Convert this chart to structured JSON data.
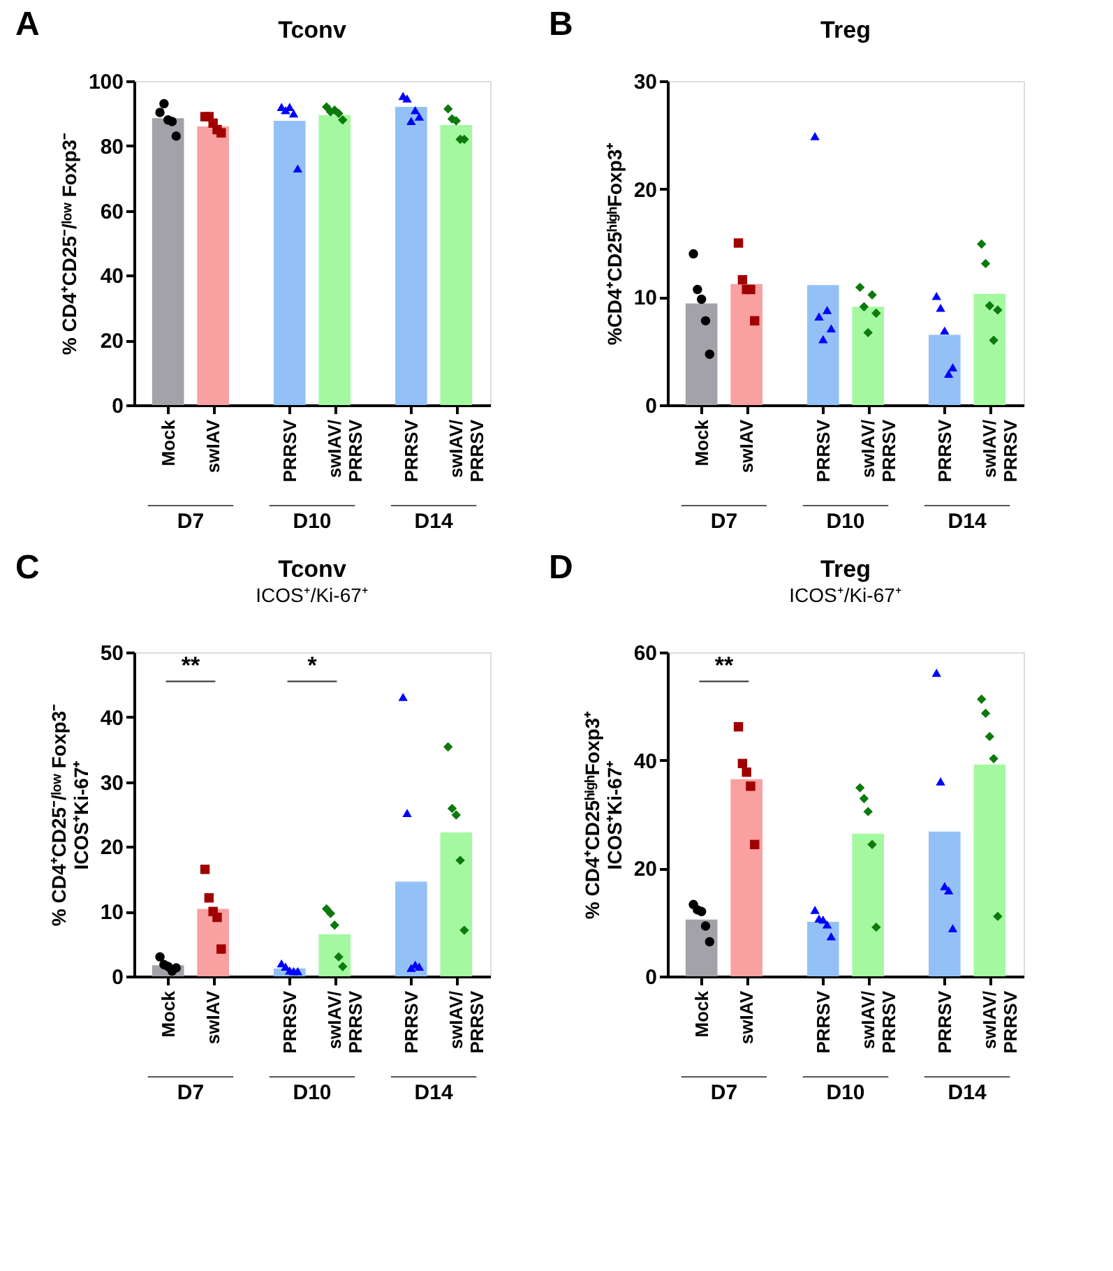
{
  "chart_data": [
    {
      "type": "bar",
      "title": "Tconv",
      "ylabel": "% CD4⁺CD25⁻/ˡᵒʷ Foxp3⁻",
      "categories": [
        "Mock",
        "swIAV",
        "PRRSV",
        "swIAV/PRRSV",
        "PRRSV",
        "swIAV/PRRSV"
      ],
      "ylim": [
        0,
        100
      ],
      "yticks": [
        0,
        20,
        40,
        60,
        80,
        100
      ],
      "annotations": [
        "A",
        "D7",
        "D10",
        "D14"
      ],
      "series": [
        {
          "values": [
            88.5,
            86,
            87.7,
            89.5,
            92,
            86.4
          ],
          "colors": [
            "#a3a2a8",
            "#f9a0a0",
            "#93c1f7",
            "#a4f9a0",
            "#93c1f7",
            "#a4f9a0"
          ]
        },
        {
          "type": "scatter",
          "values": [
            90.3,
            null,
            null,
            null,
            null,
            null
          ],
          "color": "#000000",
          "marker": "circle"
        },
        {
          "type": "scatter",
          "values": [
            93,
            null,
            null,
            null,
            null,
            null
          ],
          "color": "#000000",
          "marker": "circle"
        },
        {
          "type": "scatter",
          "values": [
            88,
            null,
            null,
            null,
            null,
            null
          ],
          "color": "#000000",
          "marker": "circle"
        },
        {
          "type": "scatter",
          "values": [
            87.5,
            null,
            null,
            null,
            null,
            null
          ],
          "color": "#000000",
          "marker": "circle"
        },
        {
          "type": "scatter",
          "values": [
            83,
            null,
            null,
            null,
            null,
            null
          ],
          "color": "#000000",
          "marker": "circle"
        },
        {
          "type": "scatter",
          "values": [
            null,
            89,
            null,
            null,
            null,
            null
          ],
          "color": "#a00000",
          "marker": "square"
        },
        {
          "type": "scatter",
          "values": [
            null,
            89,
            null,
            null,
            null,
            null
          ],
          "color": "#a00000",
          "marker": "square"
        },
        {
          "type": "scatter",
          "values": [
            null,
            87,
            null,
            null,
            null,
            null
          ],
          "color": "#a00000",
          "marker": "square"
        },
        {
          "type": "scatter",
          "values": [
            null,
            85,
            null,
            null,
            null,
            null
          ],
          "color": "#a00000",
          "marker": "square"
        },
        {
          "type": "scatter",
          "values": [
            null,
            84,
            null,
            null,
            null,
            null
          ],
          "color": "#a00000",
          "marker": "square"
        },
        {
          "type": "scatter",
          "values": [
            null,
            null,
            92,
            null,
            95.4,
            null
          ],
          "color": "#0000ff",
          "marker": "triangle"
        },
        {
          "type": "scatter",
          "values": [
            null,
            null,
            91,
            null,
            94.6,
            null
          ],
          "color": "#0000ff",
          "marker": "triangle"
        },
        {
          "type": "scatter",
          "values": [
            null,
            null,
            92,
            null,
            87.7,
            null
          ],
          "color": "#0000ff",
          "marker": "triangle"
        },
        {
          "type": "scatter",
          "values": [
            null,
            null,
            90,
            null,
            91,
            null
          ],
          "color": "#0000ff",
          "marker": "triangle"
        },
        {
          "type": "scatter",
          "values": [
            null,
            null,
            73,
            null,
            89,
            null
          ],
          "color": "#0000ff",
          "marker": "triangle"
        },
        {
          "type": "scatter",
          "values": [
            null,
            null,
            null,
            92,
            null,
            91.4
          ],
          "color": "#0b7a0b",
          "marker": "diamond"
        },
        {
          "type": "scatter",
          "values": [
            null,
            null,
            null,
            90.5,
            null,
            88.3
          ],
          "color": "#0b7a0b",
          "marker": "diamond"
        },
        {
          "type": "scatter",
          "values": [
            null,
            null,
            null,
            91,
            null,
            87.7
          ],
          "color": "#0b7a0b",
          "marker": "diamond"
        },
        {
          "type": "scatter",
          "values": [
            null,
            null,
            null,
            90,
            null,
            82
          ],
          "color": "#0b7a0b",
          "marker": "diamond"
        },
        {
          "type": "scatter",
          "values": [
            null,
            null,
            null,
            88,
            null,
            82
          ],
          "color": "#0b7a0b",
          "marker": "diamond"
        }
      ]
    },
    {
      "type": "bar",
      "title": "Treg",
      "ylabel": "%CD4⁺CD25ʰⁱᵍʰFoxp3⁺",
      "categories": [
        "Mock",
        "swIAV",
        "PRRSV",
        "swIAV/PRRSV",
        "PRRSV",
        "swIAV/PRRSV"
      ],
      "ylim": [
        0,
        30
      ],
      "yticks": [
        0,
        10,
        20,
        30
      ],
      "annotations": [
        "B",
        "D7",
        "D10",
        "D14"
      ],
      "series": [
        {
          "values": [
            9.4,
            11.2,
            11.1,
            9.1,
            6.5,
            10.3
          ],
          "colors": [
            "#a3a2a8",
            "#f9a0a0",
            "#93c1f7",
            "#a4f9a0",
            "#93c1f7",
            "#a4f9a0"
          ]
        },
        {
          "type": "scatter",
          "values": [
            14,
            null,
            null,
            null,
            null,
            null
          ],
          "color": "#000000",
          "marker": "circle"
        },
        {
          "type": "scatter",
          "values": [
            10.7,
            null,
            null,
            null,
            null,
            null
          ],
          "color": "#000000",
          "marker": "circle"
        },
        {
          "type": "scatter",
          "values": [
            9.8,
            null,
            null,
            null,
            null,
            null
          ],
          "color": "#000000",
          "marker": "circle"
        },
        {
          "type": "scatter",
          "values": [
            7.8,
            null,
            null,
            null,
            null,
            null
          ],
          "color": "#000000",
          "marker": "circle"
        },
        {
          "type": "scatter",
          "values": [
            4.7,
            null,
            null,
            null,
            null,
            null
          ],
          "color": "#000000",
          "marker": "circle"
        },
        {
          "type": "scatter",
          "values": [
            null,
            15,
            null,
            null,
            null,
            null
          ],
          "color": "#a00000",
          "marker": "square"
        },
        {
          "type": "scatter",
          "values": [
            null,
            11.6,
            null,
            null,
            null,
            null
          ],
          "color": "#a00000",
          "marker": "square"
        },
        {
          "type": "scatter",
          "values": [
            null,
            10.7,
            null,
            null,
            null,
            null
          ],
          "color": "#a00000",
          "marker": "square"
        },
        {
          "type": "scatter",
          "values": [
            null,
            10.7,
            null,
            null,
            null,
            null
          ],
          "color": "#a00000",
          "marker": "square"
        },
        {
          "type": "scatter",
          "values": [
            null,
            7.8,
            null,
            null,
            null,
            null
          ],
          "color": "#a00000",
          "marker": "square"
        },
        {
          "type": "scatter",
          "values": [
            null,
            null,
            24.9,
            null,
            10.1,
            null
          ],
          "color": "#0000ff",
          "marker": "triangle"
        },
        {
          "type": "scatter",
          "values": [
            null,
            null,
            8.2,
            null,
            9,
            null
          ],
          "color": "#0000ff",
          "marker": "triangle"
        },
        {
          "type": "scatter",
          "values": [
            null,
            null,
            6.1,
            null,
            6.9,
            null
          ],
          "color": "#0000ff",
          "marker": "triangle"
        },
        {
          "type": "scatter",
          "values": [
            null,
            null,
            8.8,
            null,
            2.9,
            null
          ],
          "color": "#0000ff",
          "marker": "triangle"
        },
        {
          "type": "scatter",
          "values": [
            null,
            null,
            7.1,
            null,
            3.5,
            null
          ],
          "color": "#0000ff",
          "marker": "triangle"
        },
        {
          "type": "scatter",
          "values": [
            null,
            null,
            null,
            10.9,
            null,
            14.9
          ],
          "color": "#0b7a0b",
          "marker": "diamond"
        },
        {
          "type": "scatter",
          "values": [
            null,
            null,
            null,
            9.1,
            null,
            13.1
          ],
          "color": "#0b7a0b",
          "marker": "diamond"
        },
        {
          "type": "scatter",
          "values": [
            null,
            null,
            null,
            6.7,
            null,
            9.2
          ],
          "color": "#0b7a0b",
          "marker": "diamond"
        },
        {
          "type": "scatter",
          "values": [
            null,
            null,
            null,
            10.2,
            null,
            6
          ],
          "color": "#0b7a0b",
          "marker": "diamond"
        },
        {
          "type": "scatter",
          "values": [
            null,
            null,
            null,
            8.5,
            null,
            8.8
          ],
          "color": "#0b7a0b",
          "marker": "diamond"
        }
      ]
    },
    {
      "type": "bar",
      "title": "Tconv",
      "subtitle": "ICOS⁺/Ki-67⁺",
      "ylabel": "% CD4⁺CD25⁻/ˡᵒʷ Foxp3⁻\nICOS⁺Ki-67⁺",
      "categories": [
        "Mock",
        "swIAV",
        "PRRSV",
        "swIAV/PRRSV",
        "PRRSV",
        "swIAV/PRRSV"
      ],
      "ylim": [
        0,
        50
      ],
      "yticks": [
        0,
        10,
        20,
        30,
        40,
        50
      ],
      "annotations": [
        "C",
        "D7",
        "D10",
        "D14",
        "**",
        "*"
      ],
      "series": [
        {
          "values": [
            1.7,
            10.4,
            1.2,
            6.5,
            14.6,
            22.2
          ],
          "colors": [
            "#a3a2a8",
            "#f9a0a0",
            "#93c1f7",
            "#a4f9a0",
            "#93c1f7",
            "#a4f9a0"
          ]
        },
        {
          "type": "scatter",
          "values": [
            3,
            null,
            null,
            null,
            null,
            null
          ],
          "color": "#000000",
          "marker": "circle"
        },
        {
          "type": "scatter",
          "values": [
            1.8,
            null,
            null,
            null,
            null,
            null
          ],
          "color": "#000000",
          "marker": "circle"
        },
        {
          "type": "scatter",
          "values": [
            1.5,
            null,
            null,
            null,
            null,
            null
          ],
          "color": "#000000",
          "marker": "circle"
        },
        {
          "type": "scatter",
          "values": [
            0.8,
            null,
            null,
            null,
            null,
            null
          ],
          "color": "#000000",
          "marker": "circle"
        },
        {
          "type": "scatter",
          "values": [
            1.3,
            null,
            null,
            null,
            null,
            null
          ],
          "color": "#000000",
          "marker": "circle"
        },
        {
          "type": "scatter",
          "values": [
            null,
            16.5,
            null,
            null,
            null,
            null
          ],
          "color": "#a00000",
          "marker": "square"
        },
        {
          "type": "scatter",
          "values": [
            null,
            12.1,
            null,
            null,
            null,
            null
          ],
          "color": "#a00000",
          "marker": "square"
        },
        {
          "type": "scatter",
          "values": [
            null,
            10,
            null,
            null,
            null,
            null
          ],
          "color": "#a00000",
          "marker": "square"
        },
        {
          "type": "scatter",
          "values": [
            null,
            9.1,
            null,
            null,
            null,
            null
          ],
          "color": "#a00000",
          "marker": "square"
        },
        {
          "type": "scatter",
          "values": [
            null,
            4.2,
            null,
            null,
            null,
            null
          ],
          "color": "#a00000",
          "marker": "square"
        },
        {
          "type": "scatter",
          "values": [
            null,
            null,
            2,
            null,
            43.1,
            null
          ],
          "color": "#0000ff",
          "marker": "triangle"
        },
        {
          "type": "scatter",
          "values": [
            null,
            null,
            1.5,
            null,
            25.2,
            null
          ],
          "color": "#0000ff",
          "marker": "triangle"
        },
        {
          "type": "scatter",
          "values": [
            null,
            null,
            0.9,
            null,
            1.3,
            null
          ],
          "color": "#0000ff",
          "marker": "triangle"
        },
        {
          "type": "scatter",
          "values": [
            null,
            null,
            0.8,
            null,
            1.8,
            null
          ],
          "color": "#0000ff",
          "marker": "triangle"
        },
        {
          "type": "scatter",
          "values": [
            null,
            null,
            0.8,
            null,
            1.5,
            null
          ],
          "color": "#0000ff",
          "marker": "triangle"
        },
        {
          "type": "scatter",
          "values": [
            null,
            null,
            null,
            10.4,
            null,
            35.4
          ],
          "color": "#0b7a0b",
          "marker": "diamond"
        },
        {
          "type": "scatter",
          "values": [
            null,
            null,
            null,
            9.7,
            null,
            25.9
          ],
          "color": "#0b7a0b",
          "marker": "diamond"
        },
        {
          "type": "scatter",
          "values": [
            null,
            null,
            null,
            7.9,
            null,
            24.9
          ],
          "color": "#0b7a0b",
          "marker": "diamond"
        },
        {
          "type": "scatter",
          "values": [
            null,
            null,
            null,
            3,
            null,
            17.9
          ],
          "color": "#0b7a0b",
          "marker": "diamond"
        },
        {
          "type": "scatter",
          "values": [
            null,
            null,
            null,
            1.5,
            null,
            7.1
          ],
          "color": "#0b7a0b",
          "marker": "diamond"
        }
      ]
    },
    {
      "type": "bar",
      "title": "Treg",
      "subtitle": "ICOS⁺/Ki-67⁺",
      "ylabel": "% CD4⁺CD25ʰⁱᵍʰFoxp3⁺\nICOS⁺Ki-67⁺",
      "categories": [
        "Mock",
        "swIAV",
        "PRRSV",
        "swIAV/PRRSV",
        "PRRSV",
        "swIAV/PRRSV"
      ],
      "ylim": [
        0,
        60
      ],
      "yticks": [
        0,
        20,
        40,
        60
      ],
      "annotations": [
        "D",
        "D7",
        "D10",
        "D14",
        "**"
      ],
      "series": [
        {
          "values": [
            10.5,
            36.5,
            10.1,
            26.4,
            26.8,
            39.2
          ],
          "colors": [
            "#a3a2a8",
            "#f9a0a0",
            "#93c1f7",
            "#a4f9a0",
            "#93c1f7",
            "#a4f9a0"
          ]
        },
        {
          "type": "scatter",
          "values": [
            13.3,
            null,
            null,
            null,
            null,
            null
          ],
          "color": "#000000",
          "marker": "circle"
        },
        {
          "type": "scatter",
          "values": [
            12.3,
            null,
            null,
            null,
            null,
            null
          ],
          "color": "#000000",
          "marker": "circle"
        },
        {
          "type": "scatter",
          "values": [
            12,
            null,
            null,
            null,
            null,
            null
          ],
          "color": "#000000",
          "marker": "circle"
        },
        {
          "type": "scatter",
          "values": [
            9.3,
            null,
            null,
            null,
            null,
            null
          ],
          "color": "#000000",
          "marker": "circle"
        },
        {
          "type": "scatter",
          "values": [
            6.4,
            null,
            null,
            null,
            null,
            null
          ],
          "color": "#000000",
          "marker": "circle"
        },
        {
          "type": "scatter",
          "values": [
            null,
            46.2,
            null,
            null,
            null,
            null
          ],
          "color": "#a00000",
          "marker": "square"
        },
        {
          "type": "scatter",
          "values": [
            null,
            39.4,
            null,
            null,
            null,
            null
          ],
          "color": "#a00000",
          "marker": "square"
        },
        {
          "type": "scatter",
          "values": [
            null,
            37.8,
            null,
            null,
            null,
            null
          ],
          "color": "#a00000",
          "marker": "square"
        },
        {
          "type": "scatter",
          "values": [
            null,
            35.2,
            null,
            null,
            null,
            null
          ],
          "color": "#a00000",
          "marker": "square"
        },
        {
          "type": "scatter",
          "values": [
            null,
            24.4,
            null,
            null,
            null,
            null
          ],
          "color": "#a00000",
          "marker": "square"
        },
        {
          "type": "scatter",
          "values": [
            null,
            null,
            12.3,
            null,
            56.2,
            null
          ],
          "color": "#0000ff",
          "marker": "triangle"
        },
        {
          "type": "scatter",
          "values": [
            null,
            null,
            10.7,
            null,
            36.1,
            null
          ],
          "color": "#0000ff",
          "marker": "triangle"
        },
        {
          "type": "scatter",
          "values": [
            null,
            null,
            10.5,
            null,
            16.7,
            null
          ],
          "color": "#0000ff",
          "marker": "triangle"
        },
        {
          "type": "scatter",
          "values": [
            null,
            null,
            9.6,
            null,
            15.9,
            null
          ],
          "color": "#0000ff",
          "marker": "triangle"
        },
        {
          "type": "scatter",
          "values": [
            null,
            null,
            7.4,
            null,
            8.9,
            null
          ],
          "color": "#0000ff",
          "marker": "triangle"
        },
        {
          "type": "scatter",
          "values": [
            null,
            null,
            null,
            34.9,
            null,
            51.3
          ],
          "color": "#0b7a0b",
          "marker": "diamond"
        },
        {
          "type": "scatter",
          "values": [
            null,
            null,
            null,
            32.9,
            null,
            48.7
          ],
          "color": "#0b7a0b",
          "marker": "diamond"
        },
        {
          "type": "scatter",
          "values": [
            null,
            null,
            null,
            30.5,
            null,
            44.4
          ],
          "color": "#0b7a0b",
          "marker": "diamond"
        },
        {
          "type": "scatter",
          "values": [
            null,
            null,
            null,
            24.4,
            null,
            40.3
          ],
          "color": "#0b7a0b",
          "marker": "diamond"
        },
        {
          "type": "scatter",
          "values": [
            null,
            null,
            null,
            9.1,
            null,
            11.1
          ],
          "color": "#0b7a0b",
          "marker": "diamond"
        }
      ]
    }
  ]
}
